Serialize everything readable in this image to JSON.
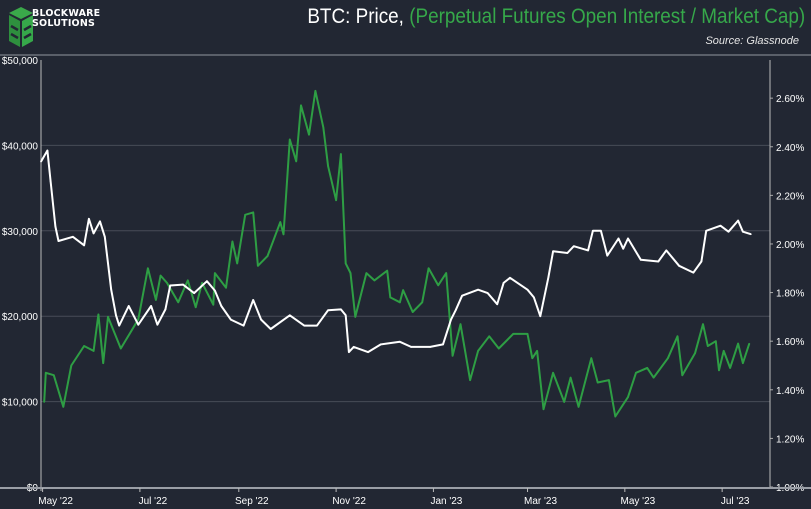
{
  "brand": {
    "line1": "BLOCKWARE",
    "line2": "SOLUTIONS"
  },
  "header": {
    "title_white": "BTC: Price, ",
    "title_green": "(Perpetual Futures Open Interest / Market Cap)",
    "source": "Source: Glassnode"
  },
  "colors": {
    "background": "#222733",
    "price": "#ffffff",
    "oi_ratio": "#2e9e44",
    "grid": "#474c57",
    "title_green": "#36a84a"
  },
  "chart_data": {
    "type": "line",
    "title": "BTC: Price, (Perpetual Futures Open Interest / Market Cap)",
    "grid": true,
    "x_range": [
      "2022-04-30",
      "2023-07-31"
    ],
    "x_ticks": [
      {
        "date": "2022-05-01",
        "label": "May '22"
      },
      {
        "date": "2022-07-01",
        "label": "Jul '22"
      },
      {
        "date": "2022-09-01",
        "label": "Sep '22"
      },
      {
        "date": "2022-11-01",
        "label": "Nov '22"
      },
      {
        "date": "2023-01-01",
        "label": "Jan '23"
      },
      {
        "date": "2023-03-01",
        "label": "Mar '23"
      },
      {
        "date": "2023-05-01",
        "label": "May '23"
      },
      {
        "date": "2023-07-01",
        "label": "Jul '23"
      }
    ],
    "y_left": {
      "range": [
        0,
        50000
      ],
      "ticks": [
        0,
        10000,
        20000,
        30000,
        40000,
        50000
      ],
      "tick_labels": [
        "$0",
        "$10,000",
        "$20,000",
        "$30,000",
        "$40,000",
        "$50,000"
      ]
    },
    "y_right": {
      "range": [
        1.0,
        2.757
      ],
      "ticks": [
        1.0,
        1.2,
        1.4,
        1.6,
        1.8,
        2.0,
        2.2,
        2.4,
        2.6
      ],
      "tick_labels": [
        "1.00%",
        "1.20%",
        "1.40%",
        "1.60%",
        "1.80%",
        "2.00%",
        "2.20%",
        "2.40%",
        "2.60%"
      ]
    },
    "series": [
      {
        "axis": "left",
        "color": "#ffffff",
        "points": [
          [
            "2022-04-30",
            38100
          ],
          [
            "2022-05-04",
            39400
          ],
          [
            "2022-05-06",
            35800
          ],
          [
            "2022-05-09",
            30500
          ],
          [
            "2022-05-11",
            28800
          ],
          [
            "2022-05-20",
            29300
          ],
          [
            "2022-05-27",
            28300
          ],
          [
            "2022-05-30",
            31400
          ],
          [
            "2022-06-02",
            29700
          ],
          [
            "2022-06-06",
            31100
          ],
          [
            "2022-06-09",
            29300
          ],
          [
            "2022-06-13",
            23100
          ],
          [
            "2022-06-16",
            20100
          ],
          [
            "2022-06-18",
            18900
          ],
          [
            "2022-06-24",
            21200
          ],
          [
            "2022-06-30",
            19000
          ],
          [
            "2022-07-08",
            21200
          ],
          [
            "2022-07-12",
            19000
          ],
          [
            "2022-07-17",
            20800
          ],
          [
            "2022-07-20",
            23600
          ],
          [
            "2022-07-28",
            23700
          ],
          [
            "2022-08-04",
            22700
          ],
          [
            "2022-08-12",
            24100
          ],
          [
            "2022-08-17",
            23000
          ],
          [
            "2022-08-21",
            21200
          ],
          [
            "2022-08-27",
            19600
          ],
          [
            "2022-09-04",
            18900
          ],
          [
            "2022-09-10",
            21900
          ],
          [
            "2022-09-15",
            19600
          ],
          [
            "2022-09-21",
            18500
          ],
          [
            "2022-10-03",
            20100
          ],
          [
            "2022-10-12",
            18900
          ],
          [
            "2022-10-20",
            18900
          ],
          [
            "2022-10-27",
            20700
          ],
          [
            "2022-11-04",
            20800
          ],
          [
            "2022-11-07",
            20100
          ],
          [
            "2022-11-09",
            15800
          ],
          [
            "2022-11-12",
            16400
          ],
          [
            "2022-11-21",
            15800
          ],
          [
            "2022-11-29",
            16700
          ],
          [
            "2022-12-11",
            17000
          ],
          [
            "2022-12-18",
            16400
          ],
          [
            "2022-12-30",
            16400
          ],
          [
            "2023-01-07",
            16700
          ],
          [
            "2023-01-12",
            19600
          ],
          [
            "2023-01-15",
            20700
          ],
          [
            "2023-01-19",
            22400
          ],
          [
            "2023-01-29",
            23100
          ],
          [
            "2023-02-04",
            22700
          ],
          [
            "2023-02-10",
            21400
          ],
          [
            "2023-02-14",
            23900
          ],
          [
            "2023-02-18",
            24500
          ],
          [
            "2023-03-01",
            23100
          ],
          [
            "2023-03-05",
            22200
          ],
          [
            "2023-03-09",
            20000
          ],
          [
            "2023-03-14",
            24500
          ],
          [
            "2023-03-17",
            27600
          ],
          [
            "2023-03-26",
            27400
          ],
          [
            "2023-03-30",
            28200
          ],
          [
            "2023-04-08",
            27700
          ],
          [
            "2023-04-11",
            30000
          ],
          [
            "2023-04-16",
            30000
          ],
          [
            "2023-04-20",
            27100
          ],
          [
            "2023-04-27",
            29100
          ],
          [
            "2023-04-30",
            27900
          ],
          [
            "2023-05-03",
            29100
          ],
          [
            "2023-05-11",
            26600
          ],
          [
            "2023-05-22",
            26400
          ],
          [
            "2023-05-27",
            27700
          ],
          [
            "2023-06-04",
            25900
          ],
          [
            "2023-06-13",
            25100
          ],
          [
            "2023-06-18",
            26400
          ],
          [
            "2023-06-21",
            30000
          ],
          [
            "2023-06-30",
            30600
          ],
          [
            "2023-07-05",
            29900
          ],
          [
            "2023-07-11",
            31200
          ],
          [
            "2023-07-14",
            29900
          ],
          [
            "2023-07-19",
            29600
          ]
        ]
      },
      {
        "axis": "right",
        "color": "#2e9e44",
        "points": [
          [
            "2022-05-02",
            1.35
          ],
          [
            "2022-05-03",
            1.47
          ],
          [
            "2022-05-08",
            1.46
          ],
          [
            "2022-05-14",
            1.33
          ],
          [
            "2022-05-19",
            1.5
          ],
          [
            "2022-05-27",
            1.58
          ],
          [
            "2022-06-02",
            1.56
          ],
          [
            "2022-06-05",
            1.71
          ],
          [
            "2022-06-08",
            1.51
          ],
          [
            "2022-06-11",
            1.7
          ],
          [
            "2022-06-19",
            1.57
          ],
          [
            "2022-06-30",
            1.69
          ],
          [
            "2022-07-06",
            1.9
          ],
          [
            "2022-07-11",
            1.77
          ],
          [
            "2022-07-14",
            1.87
          ],
          [
            "2022-07-18",
            1.84
          ],
          [
            "2022-07-25",
            1.76
          ],
          [
            "2022-07-31",
            1.85
          ],
          [
            "2022-08-05",
            1.74
          ],
          [
            "2022-08-09",
            1.84
          ],
          [
            "2022-08-16",
            1.75
          ],
          [
            "2022-08-17",
            1.88
          ],
          [
            "2022-08-24",
            1.82
          ],
          [
            "2022-08-28",
            2.01
          ],
          [
            "2022-08-31",
            1.92
          ],
          [
            "2022-09-05",
            2.12
          ],
          [
            "2022-09-10",
            2.13
          ],
          [
            "2022-09-13",
            1.91
          ],
          [
            "2022-09-19",
            1.95
          ],
          [
            "2022-09-27",
            2.09
          ],
          [
            "2022-09-29",
            2.04
          ],
          [
            "2022-10-03",
            2.43
          ],
          [
            "2022-10-07",
            2.34
          ],
          [
            "2022-10-10",
            2.57
          ],
          [
            "2022-10-15",
            2.45
          ],
          [
            "2022-10-19",
            2.63
          ],
          [
            "2022-10-24",
            2.48
          ],
          [
            "2022-10-27",
            2.32
          ],
          [
            "2022-11-01",
            2.18
          ],
          [
            "2022-11-04",
            2.37
          ],
          [
            "2022-11-07",
            1.92
          ],
          [
            "2022-11-10",
            1.88
          ],
          [
            "2022-11-13",
            1.7
          ],
          [
            "2022-11-20",
            1.88
          ],
          [
            "2022-11-25",
            1.85
          ],
          [
            "2022-12-03",
            1.89
          ],
          [
            "2022-12-05",
            1.78
          ],
          [
            "2022-12-11",
            1.76
          ],
          [
            "2022-12-13",
            1.81
          ],
          [
            "2022-12-19",
            1.72
          ],
          [
            "2022-12-25",
            1.76
          ],
          [
            "2022-12-29",
            1.9
          ],
          [
            "2023-01-04",
            1.83
          ],
          [
            "2023-01-09",
            1.88
          ],
          [
            "2023-01-13",
            1.54
          ],
          [
            "2023-01-18",
            1.67
          ],
          [
            "2023-01-24",
            1.44
          ],
          [
            "2023-01-29",
            1.56
          ],
          [
            "2023-02-05",
            1.62
          ],
          [
            "2023-02-11",
            1.57
          ],
          [
            "2023-02-20",
            1.63
          ],
          [
            "2023-03-01",
            1.63
          ],
          [
            "2023-03-04",
            1.53
          ],
          [
            "2023-03-07",
            1.56
          ],
          [
            "2023-03-11",
            1.32
          ],
          [
            "2023-03-17",
            1.47
          ],
          [
            "2023-03-24",
            1.35
          ],
          [
            "2023-03-28",
            1.45
          ],
          [
            "2023-04-02",
            1.33
          ],
          [
            "2023-04-10",
            1.53
          ],
          [
            "2023-04-14",
            1.43
          ],
          [
            "2023-04-21",
            1.44
          ],
          [
            "2023-04-25",
            1.29
          ],
          [
            "2023-05-03",
            1.37
          ],
          [
            "2023-05-08",
            1.47
          ],
          [
            "2023-05-15",
            1.49
          ],
          [
            "2023-05-19",
            1.45
          ],
          [
            "2023-05-28",
            1.53
          ],
          [
            "2023-06-03",
            1.62
          ],
          [
            "2023-06-06",
            1.46
          ],
          [
            "2023-06-14",
            1.55
          ],
          [
            "2023-06-19",
            1.67
          ],
          [
            "2023-06-22",
            1.58
          ],
          [
            "2023-06-27",
            1.6
          ],
          [
            "2023-06-29",
            1.48
          ],
          [
            "2023-07-02",
            1.56
          ],
          [
            "2023-07-06",
            1.49
          ],
          [
            "2023-07-11",
            1.59
          ],
          [
            "2023-07-14",
            1.51
          ],
          [
            "2023-07-18",
            1.59
          ]
        ]
      }
    ]
  }
}
